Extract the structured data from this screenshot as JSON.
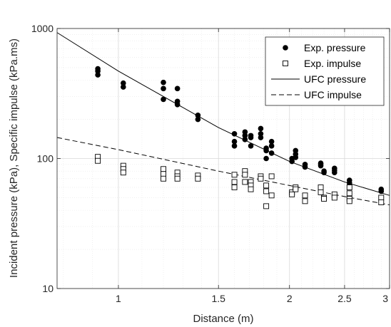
{
  "chart_data": {
    "type": "scatter",
    "title": "",
    "xlabel": "Distance (m)",
    "ylabel": "Incident pressure (kPa), Specific impulse (kPa.ms)",
    "xscale": "log",
    "yscale": "log",
    "xlim": [
      0.78,
      3.0
    ],
    "ylim": [
      10,
      1000
    ],
    "grid": true,
    "legend_position": "top-right",
    "xticks": [
      {
        "value": 1,
        "label": "1"
      },
      {
        "value": 1.5,
        "label": "1.5"
      },
      {
        "value": 2,
        "label": "2"
      },
      {
        "value": 2.5,
        "label": "2.5"
      },
      {
        "value": 3,
        "label": "3"
      }
    ],
    "yticks": [
      {
        "value": 10,
        "label": "10"
      },
      {
        "value": 100,
        "label": "100"
      },
      {
        "value": 1000,
        "label": "1000"
      }
    ],
    "series": [
      {
        "name": "Exp. pressure",
        "kind": "scatter",
        "marker": "filled-circle",
        "color": "#000000",
        "points": [
          [
            0.92,
            490
          ],
          [
            0.92,
            470
          ],
          [
            0.92,
            440
          ],
          [
            1.02,
            380
          ],
          [
            1.02,
            355
          ],
          [
            1.2,
            385
          ],
          [
            1.2,
            345
          ],
          [
            1.2,
            285
          ],
          [
            1.27,
            345
          ],
          [
            1.27,
            275
          ],
          [
            1.27,
            260
          ],
          [
            1.38,
            215
          ],
          [
            1.38,
            200
          ],
          [
            1.6,
            155
          ],
          [
            1.6,
            135
          ],
          [
            1.6,
            125
          ],
          [
            1.67,
            160
          ],
          [
            1.67,
            150
          ],
          [
            1.67,
            140
          ],
          [
            1.71,
            150
          ],
          [
            1.71,
            145
          ],
          [
            1.71,
            125
          ],
          [
            1.78,
            170
          ],
          [
            1.78,
            155
          ],
          [
            1.78,
            145
          ],
          [
            1.82,
            120
          ],
          [
            1.82,
            115
          ],
          [
            1.82,
            100
          ],
          [
            1.86,
            135
          ],
          [
            1.86,
            125
          ],
          [
            1.86,
            110
          ],
          [
            2.02,
            100
          ],
          [
            2.02,
            95
          ],
          [
            2.05,
            115
          ],
          [
            2.05,
            108
          ],
          [
            2.05,
            102
          ],
          [
            2.13,
            90
          ],
          [
            2.13,
            86
          ],
          [
            2.27,
            92
          ],
          [
            2.27,
            90
          ],
          [
            2.27,
            88
          ],
          [
            2.3,
            80
          ],
          [
            2.3,
            78
          ],
          [
            2.4,
            84
          ],
          [
            2.4,
            81
          ],
          [
            2.4,
            78
          ],
          [
            2.55,
            68
          ],
          [
            2.55,
            65
          ],
          [
            2.55,
            62
          ],
          [
            2.9,
            58
          ],
          [
            2.9,
            56
          ]
        ]
      },
      {
        "name": "Exp. impulse",
        "kind": "scatter",
        "marker": "open-square",
        "color": "#000000",
        "points": [
          [
            0.92,
            103
          ],
          [
            0.92,
            96
          ],
          [
            1.02,
            88
          ],
          [
            1.02,
            83
          ],
          [
            1.02,
            78
          ],
          [
            1.2,
            83
          ],
          [
            1.2,
            76
          ],
          [
            1.2,
            70
          ],
          [
            1.27,
            78
          ],
          [
            1.27,
            73
          ],
          [
            1.27,
            70
          ],
          [
            1.38,
            74
          ],
          [
            1.38,
            70
          ],
          [
            1.6,
            75
          ],
          [
            1.6,
            66
          ],
          [
            1.6,
            60
          ],
          [
            1.67,
            80
          ],
          [
            1.67,
            75
          ],
          [
            1.67,
            66
          ],
          [
            1.71,
            66
          ],
          [
            1.71,
            62
          ],
          [
            1.71,
            58
          ],
          [
            1.78,
            73
          ],
          [
            1.78,
            70
          ],
          [
            1.82,
            62
          ],
          [
            1.82,
            56
          ],
          [
            1.82,
            43
          ],
          [
            1.86,
            73
          ],
          [
            1.86,
            52
          ],
          [
            2.02,
            55
          ],
          [
            2.02,
            53
          ],
          [
            2.05,
            60
          ],
          [
            2.05,
            58
          ],
          [
            2.13,
            52
          ],
          [
            2.13,
            47
          ],
          [
            2.27,
            60
          ],
          [
            2.27,
            55
          ],
          [
            2.3,
            50
          ],
          [
            2.3,
            49
          ],
          [
            2.4,
            53
          ],
          [
            2.4,
            50
          ],
          [
            2.55,
            60
          ],
          [
            2.55,
            54
          ],
          [
            2.55,
            49
          ],
          [
            2.55,
            47
          ],
          [
            2.9,
            50
          ],
          [
            2.9,
            46
          ]
        ]
      },
      {
        "name": "UFC pressure",
        "kind": "line",
        "style": "solid",
        "color": "#000000",
        "points": [
          [
            0.78,
            930
          ],
          [
            1.0,
            470
          ],
          [
            1.5,
            173
          ],
          [
            2.0,
            95
          ],
          [
            2.5,
            66
          ],
          [
            3.0,
            52
          ]
        ]
      },
      {
        "name": "UFC impulse",
        "kind": "line",
        "style": "dashed",
        "color": "#000000",
        "points": [
          [
            0.78,
            145
          ],
          [
            1.0,
            117
          ],
          [
            1.5,
            80
          ],
          [
            2.0,
            62
          ],
          [
            2.5,
            51
          ],
          [
            3.0,
            44
          ]
        ]
      }
    ]
  }
}
